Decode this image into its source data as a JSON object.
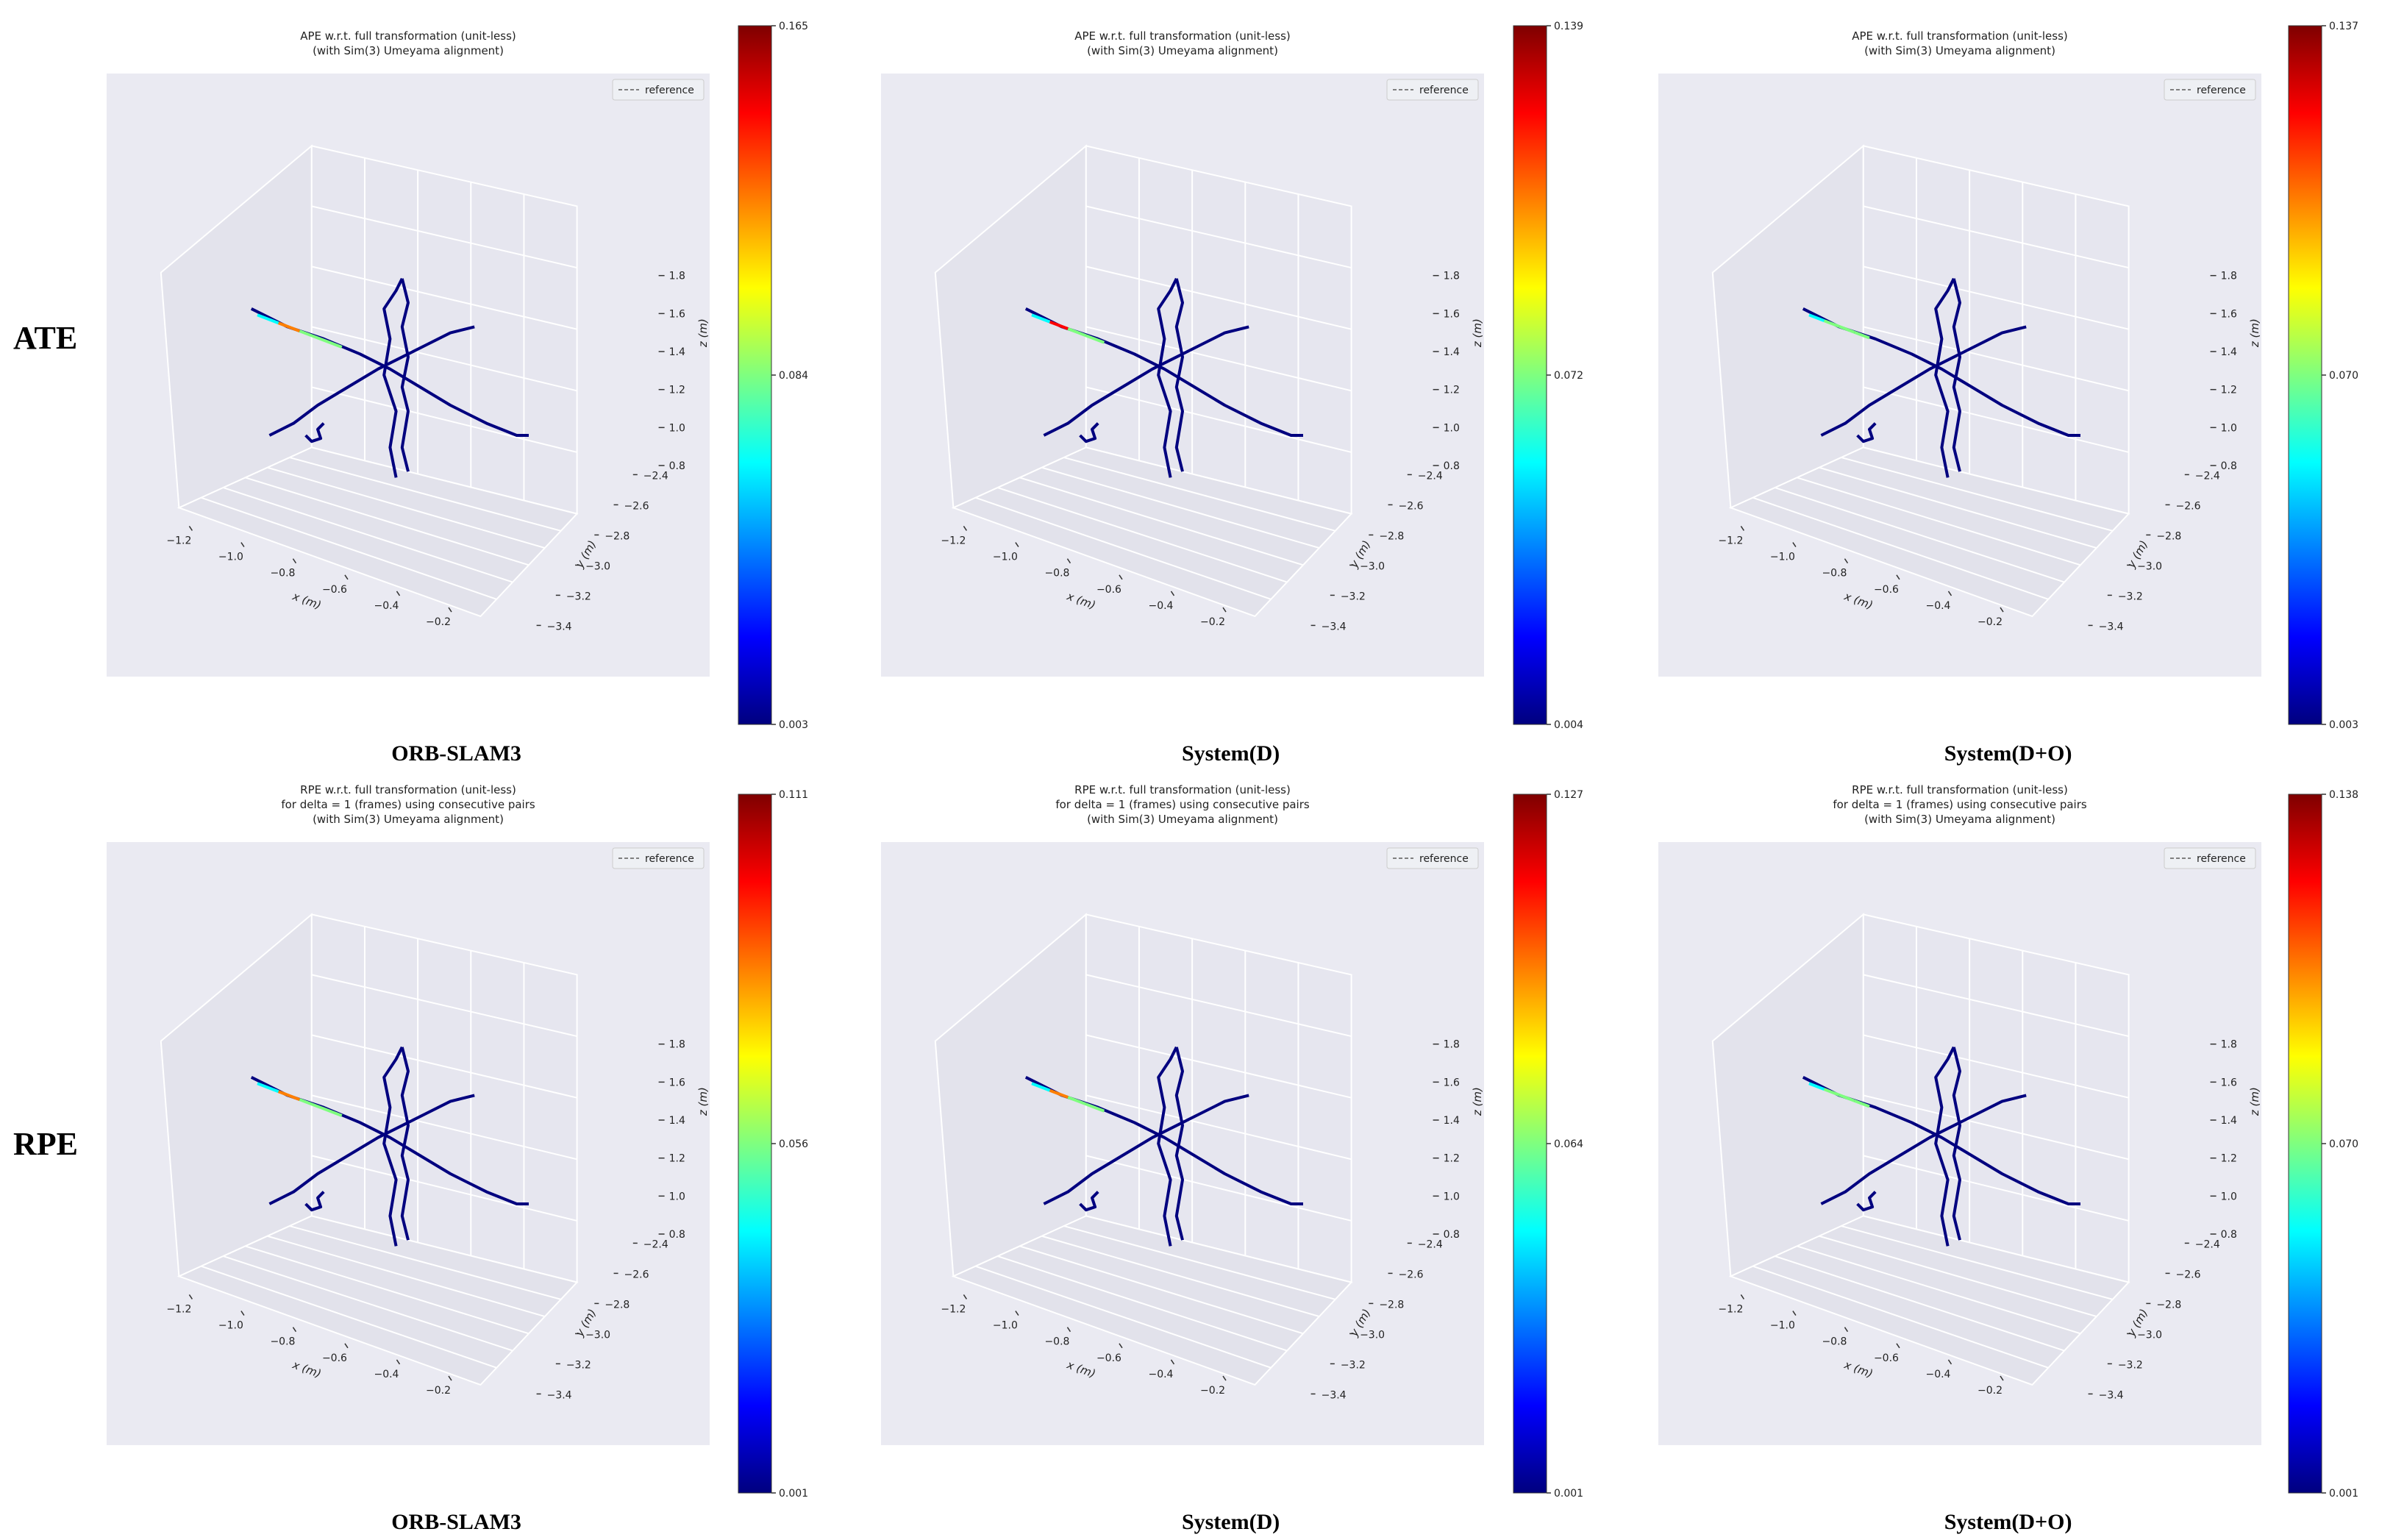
{
  "row_labels": [
    "ATE",
    "RPE"
  ],
  "panel_labels": [
    "ORB-SLAM3",
    "System(D)",
    "System(D+O)"
  ],
  "colormap": [
    "#00007f",
    "#0000ff",
    "#007fff",
    "#00ffff",
    "#7fff7f",
    "#ffff00",
    "#ff7f00",
    "#ff0000",
    "#7f0000"
  ],
  "background_color": "#eaeaf2",
  "reference_color": "#808080",
  "chart_data": [
    {
      "type": "3d-trajectory",
      "title": [
        "APE w.r.t. full transformation (unit-less)",
        "(with Sim(3) Umeyama alignment)"
      ],
      "xlabel": "x (m)",
      "ylabel": "y (m)",
      "zlabel": "z (m)",
      "x_ticks": [
        "−1.2",
        "−1.0",
        "−0.8",
        "−0.6",
        "−0.4",
        "−0.2"
      ],
      "y_ticks": [
        "−2.4",
        "−2.6",
        "−2.8",
        "−3.0",
        "−3.2",
        "−3.4"
      ],
      "z_ticks": [
        "0.8",
        "1.0",
        "1.2",
        "1.4",
        "1.6",
        "1.8"
      ],
      "legend": "reference",
      "colorbar": {
        "min": "0.003",
        "mid": "0.084",
        "max": "0.165"
      },
      "caption": "ORB-SLAM3",
      "error_profile": {
        "bright_segments": [
          0.08,
          0.22
        ],
        "peak_level": 0.75
      }
    },
    {
      "type": "3d-trajectory",
      "title": [
        "APE w.r.t. full transformation (unit-less)",
        "(with Sim(3) Umeyama alignment)"
      ],
      "xlabel": "x (m)",
      "ylabel": "y (m)",
      "zlabel": "z (m)",
      "x_ticks": [
        "−1.2",
        "−1.0",
        "−0.8",
        "−0.6",
        "−0.4",
        "−0.2"
      ],
      "y_ticks": [
        "−2.4",
        "−2.6",
        "−2.8",
        "−3.0",
        "−3.2",
        "−3.4"
      ],
      "z_ticks": [
        "0.8",
        "1.0",
        "1.2",
        "1.4",
        "1.6",
        "1.8"
      ],
      "legend": "reference",
      "colorbar": {
        "min": "0.004",
        "mid": "0.072",
        "max": "0.139"
      },
      "caption": "System(D)",
      "error_profile": {
        "bright_segments": [
          0.08,
          0.2
        ],
        "peak_level": 0.85
      }
    },
    {
      "type": "3d-trajectory",
      "title": [
        "APE w.r.t. full transformation (unit-less)",
        "(with Sim(3) Umeyama alignment)"
      ],
      "xlabel": "x (m)",
      "ylabel": "y (m)",
      "zlabel": "z (m)",
      "x_ticks": [
        "−1.2",
        "−1.0",
        "−0.8",
        "−0.6",
        "−0.4",
        "−0.2"
      ],
      "y_ticks": [
        "−2.4",
        "−2.6",
        "−2.8",
        "−3.0",
        "−3.2",
        "−3.4"
      ],
      "z_ticks": [
        "0.8",
        "1.0",
        "1.2",
        "1.4",
        "1.6",
        "1.8"
      ],
      "legend": "reference",
      "colorbar": {
        "min": "0.003",
        "mid": "0.070",
        "max": "0.137"
      },
      "caption": "System(D+O)",
      "error_profile": {
        "bright_segments": [
          0.08,
          0.18
        ],
        "peak_level": 0.5
      }
    },
    {
      "type": "3d-trajectory",
      "title": [
        "RPE w.r.t. full transformation (unit-less)",
        "for delta = 1 (frames) using consecutive pairs",
        "(with Sim(3) Umeyama alignment)"
      ],
      "xlabel": "x (m)",
      "ylabel": "y (m)",
      "zlabel": "z (m)",
      "x_ticks": [
        "−1.2",
        "−1.0",
        "−0.8",
        "−0.6",
        "−0.4",
        "−0.2"
      ],
      "y_ticks": [
        "−2.4",
        "−2.6",
        "−2.8",
        "−3.0",
        "−3.2",
        "−3.4"
      ],
      "z_ticks": [
        "0.8",
        "1.0",
        "1.2",
        "1.4",
        "1.6",
        "1.8"
      ],
      "legend": "reference",
      "colorbar": {
        "min": "0.001",
        "mid": "0.056",
        "max": "0.111"
      },
      "caption": "ORB-SLAM3",
      "error_profile": {
        "bright_segments": [
          0.08,
          0.22
        ],
        "peak_level": 0.8
      }
    },
    {
      "type": "3d-trajectory",
      "title": [
        "RPE w.r.t. full transformation (unit-less)",
        "for delta = 1 (frames) using consecutive pairs",
        "(with Sim(3) Umeyama alignment)"
      ],
      "xlabel": "x (m)",
      "ylabel": "y (m)",
      "zlabel": "z (m)",
      "x_ticks": [
        "−1.2",
        "−1.0",
        "−0.8",
        "−0.6",
        "−0.4",
        "−0.2"
      ],
      "y_ticks": [
        "−2.4",
        "−2.6",
        "−2.8",
        "−3.0",
        "−3.2",
        "−3.4"
      ],
      "z_ticks": [
        "0.8",
        "1.0",
        "1.2",
        "1.4",
        "1.6",
        "1.8"
      ],
      "legend": "reference",
      "colorbar": {
        "min": "0.001",
        "mid": "0.064",
        "max": "0.127"
      },
      "caption": "System(D)",
      "error_profile": {
        "bright_segments": [
          0.08,
          0.2
        ],
        "peak_level": 0.7
      }
    },
    {
      "type": "3d-trajectory",
      "title": [
        "RPE w.r.t. full transformation (unit-less)",
        "for delta = 1 (frames) using consecutive pairs",
        "(with Sim(3) Umeyama alignment)"
      ],
      "xlabel": "x (m)",
      "ylabel": "y (m)",
      "zlabel": "z (m)",
      "x_ticks": [
        "−1.2",
        "−1.0",
        "−0.8",
        "−0.6",
        "−0.4",
        "−0.2"
      ],
      "y_ticks": [
        "−2.4",
        "−2.6",
        "−2.8",
        "−3.0",
        "−3.2",
        "−3.4"
      ],
      "z_ticks": [
        "0.8",
        "1.0",
        "1.2",
        "1.4",
        "1.6",
        "1.8"
      ],
      "legend": "reference",
      "colorbar": {
        "min": "0.001",
        "mid": "0.070",
        "max": "0.138"
      },
      "caption": "System(D+O)",
      "error_profile": {
        "bright_segments": [
          0.08,
          0.18
        ],
        "peak_level": 0.55
      }
    }
  ]
}
